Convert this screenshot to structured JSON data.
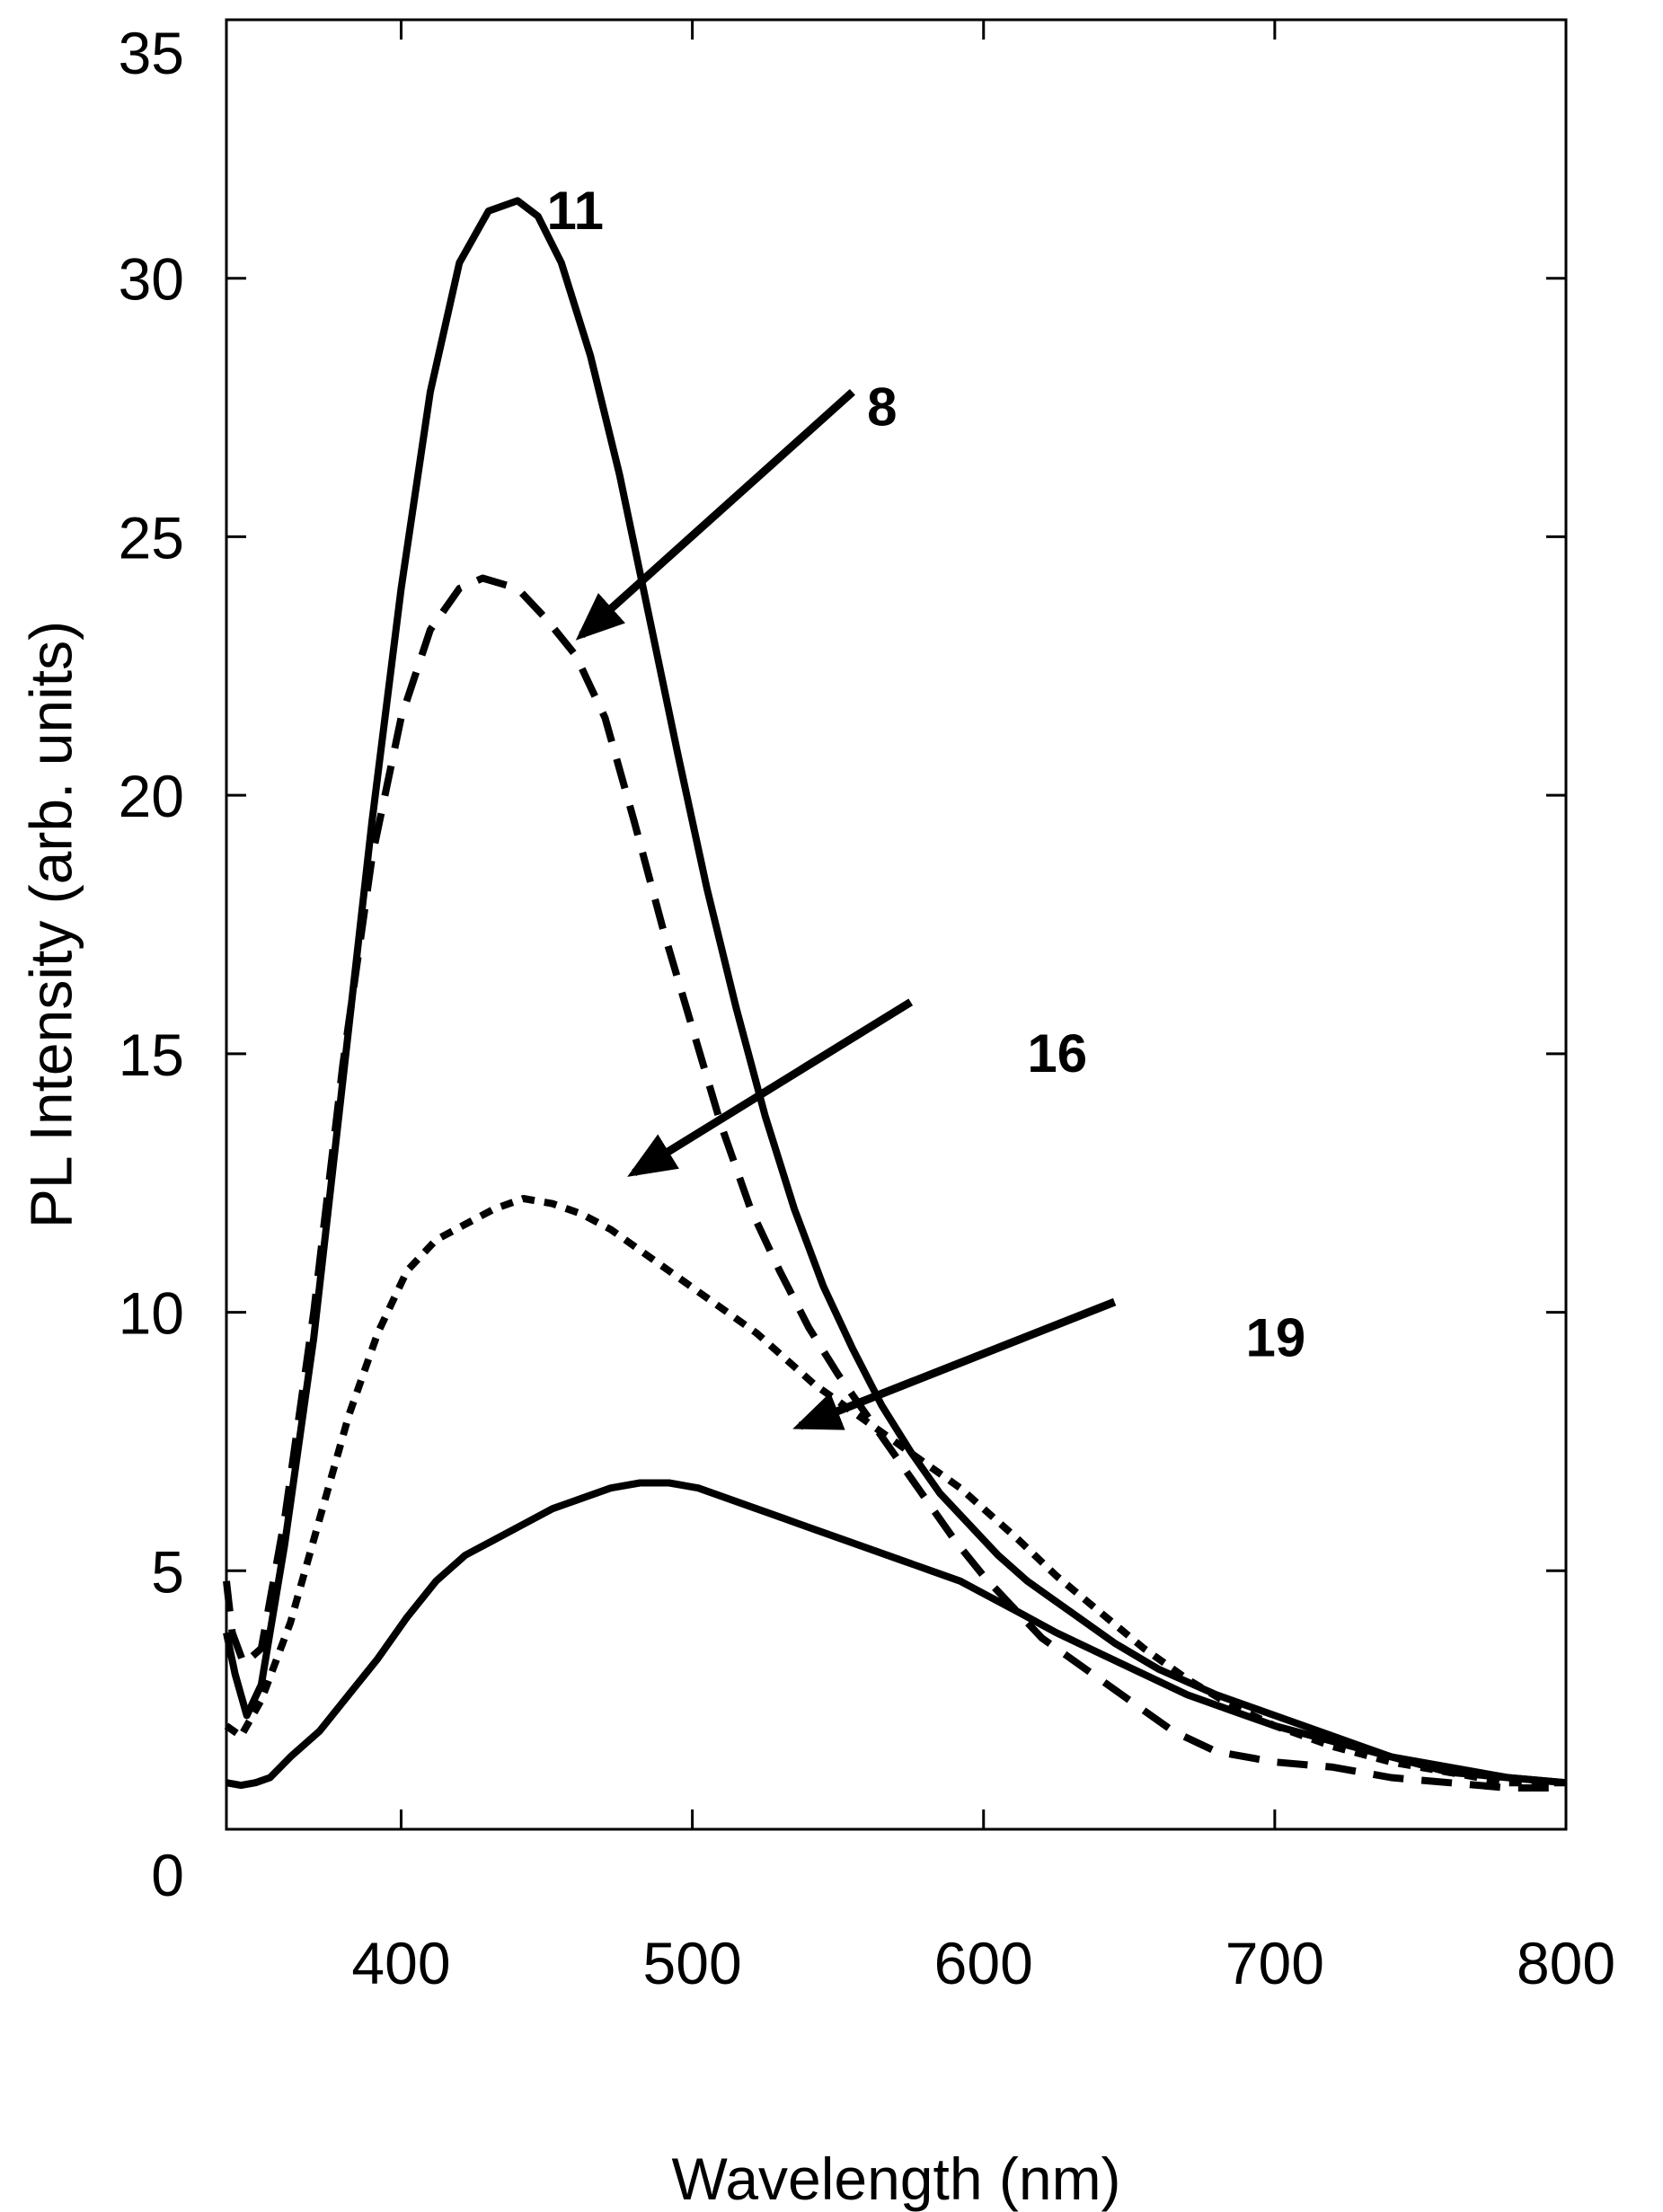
{
  "chart_data": {
    "type": "line",
    "title": "",
    "xlabel": "Wavelength (nm)",
    "ylabel": "PL Intensity (arb. units)",
    "xlim": [
      340,
      800
    ],
    "ylim": [
      0,
      35
    ],
    "xticks": [
      400,
      500,
      600,
      700,
      800
    ],
    "yticks": [
      0,
      5,
      10,
      15,
      20,
      25,
      30,
      35
    ],
    "grid": false,
    "legend": "none",
    "colors": {
      "line": "#000000",
      "background": "#ffffff"
    },
    "series": [
      {
        "label": "11",
        "style": "solid",
        "points": [
          [
            340,
            3.8
          ],
          [
            343,
            3.0
          ],
          [
            347,
            2.2
          ],
          [
            352,
            2.8
          ],
          [
            360,
            5.5
          ],
          [
            370,
            9.5
          ],
          [
            380,
            14.5
          ],
          [
            390,
            19.5
          ],
          [
            400,
            24.0
          ],
          [
            410,
            27.8
          ],
          [
            420,
            30.3
          ],
          [
            430,
            31.3
          ],
          [
            440,
            31.5
          ],
          [
            447,
            31.2
          ],
          [
            455,
            30.3
          ],
          [
            465,
            28.5
          ],
          [
            475,
            26.2
          ],
          [
            485,
            23.5
          ],
          [
            495,
            20.8
          ],
          [
            505,
            18.2
          ],
          [
            515,
            15.9
          ],
          [
            525,
            13.8
          ],
          [
            535,
            12.0
          ],
          [
            545,
            10.5
          ],
          [
            555,
            9.3
          ],
          [
            565,
            8.2
          ],
          [
            575,
            7.3
          ],
          [
            585,
            6.5
          ],
          [
            595,
            5.9
          ],
          [
            605,
            5.3
          ],
          [
            615,
            4.8
          ],
          [
            630,
            4.2
          ],
          [
            645,
            3.6
          ],
          [
            660,
            3.1
          ],
          [
            680,
            2.6
          ],
          [
            700,
            2.2
          ],
          [
            720,
            1.8
          ],
          [
            740,
            1.4
          ],
          [
            760,
            1.1
          ],
          [
            780,
            1.0
          ],
          [
            800,
            0.9
          ]
        ]
      },
      {
        "label": "8",
        "style": "dashed",
        "points": [
          [
            340,
            4.8
          ],
          [
            342,
            3.8
          ],
          [
            346,
            3.2
          ],
          [
            352,
            3.5
          ],
          [
            360,
            6.0
          ],
          [
            370,
            10.0
          ],
          [
            380,
            14.8
          ],
          [
            390,
            18.8
          ],
          [
            400,
            21.5
          ],
          [
            410,
            23.2
          ],
          [
            420,
            24.0
          ],
          [
            428,
            24.2
          ],
          [
            440,
            24.0
          ],
          [
            450,
            23.4
          ],
          [
            460,
            22.7
          ],
          [
            470,
            21.5
          ],
          [
            480,
            19.5
          ],
          [
            490,
            17.4
          ],
          [
            500,
            15.5
          ],
          [
            510,
            13.6
          ],
          [
            520,
            12.0
          ],
          [
            530,
            10.8
          ],
          [
            540,
            9.7
          ],
          [
            550,
            8.8
          ],
          [
            560,
            8.0
          ],
          [
            570,
            7.2
          ],
          [
            580,
            6.4
          ],
          [
            590,
            5.6
          ],
          [
            600,
            4.9
          ],
          [
            610,
            4.3
          ],
          [
            620,
            3.7
          ],
          [
            635,
            3.1
          ],
          [
            650,
            2.5
          ],
          [
            665,
            1.9
          ],
          [
            680,
            1.5
          ],
          [
            700,
            1.3
          ],
          [
            720,
            1.2
          ],
          [
            740,
            1.0
          ],
          [
            760,
            0.9
          ],
          [
            780,
            0.8
          ],
          [
            800,
            0.8
          ]
        ]
      },
      {
        "label": "16",
        "style": "dotted",
        "points": [
          [
            340,
            2.0
          ],
          [
            345,
            1.8
          ],
          [
            352,
            2.5
          ],
          [
            362,
            4.0
          ],
          [
            372,
            6.0
          ],
          [
            382,
            8.0
          ],
          [
            392,
            9.6
          ],
          [
            402,
            10.8
          ],
          [
            412,
            11.4
          ],
          [
            422,
            11.7
          ],
          [
            432,
            12.0
          ],
          [
            442,
            12.2
          ],
          [
            452,
            12.1
          ],
          [
            462,
            11.9
          ],
          [
            472,
            11.6
          ],
          [
            482,
            11.2
          ],
          [
            492,
            10.8
          ],
          [
            502,
            10.4
          ],
          [
            512,
            10.0
          ],
          [
            522,
            9.6
          ],
          [
            532,
            9.1
          ],
          [
            542,
            8.6
          ],
          [
            552,
            8.2
          ],
          [
            562,
            7.8
          ],
          [
            572,
            7.4
          ],
          [
            582,
            7.0
          ],
          [
            592,
            6.6
          ],
          [
            602,
            6.1
          ],
          [
            612,
            5.6
          ],
          [
            625,
            4.9
          ],
          [
            640,
            4.2
          ],
          [
            655,
            3.5
          ],
          [
            670,
            2.9
          ],
          [
            685,
            2.4
          ],
          [
            700,
            2.0
          ],
          [
            720,
            1.6
          ],
          [
            740,
            1.3
          ],
          [
            760,
            1.1
          ],
          [
            780,
            0.9
          ],
          [
            800,
            0.9
          ]
        ]
      },
      {
        "label": "19",
        "style": "solid",
        "points": [
          [
            340,
            0.9
          ],
          [
            345,
            0.85
          ],
          [
            350,
            0.9
          ],
          [
            355,
            1.0
          ],
          [
            362,
            1.4
          ],
          [
            372,
            1.9
          ],
          [
            382,
            2.6
          ],
          [
            392,
            3.3
          ],
          [
            402,
            4.1
          ],
          [
            412,
            4.8
          ],
          [
            422,
            5.3
          ],
          [
            432,
            5.6
          ],
          [
            442,
            5.9
          ],
          [
            452,
            6.2
          ],
          [
            462,
            6.4
          ],
          [
            472,
            6.6
          ],
          [
            482,
            6.7
          ],
          [
            492,
            6.7
          ],
          [
            502,
            6.6
          ],
          [
            512,
            6.4
          ],
          [
            522,
            6.2
          ],
          [
            532,
            6.0
          ],
          [
            542,
            5.8
          ],
          [
            552,
            5.6
          ],
          [
            562,
            5.4
          ],
          [
            572,
            5.2
          ],
          [
            582,
            5.0
          ],
          [
            592,
            4.8
          ],
          [
            602,
            4.5
          ],
          [
            612,
            4.2
          ],
          [
            625,
            3.8
          ],
          [
            640,
            3.4
          ],
          [
            655,
            3.0
          ],
          [
            670,
            2.6
          ],
          [
            685,
            2.3
          ],
          [
            700,
            2.0
          ],
          [
            720,
            1.7
          ],
          [
            740,
            1.4
          ],
          [
            760,
            1.2
          ],
          [
            780,
            1.0
          ],
          [
            800,
            0.9
          ]
        ]
      }
    ],
    "annotations": [
      {
        "text": "11",
        "at": [
          450,
          31.3
        ],
        "arrow": false
      },
      {
        "text": "8",
        "at": [
          560,
          27.5
        ],
        "arrow_from": [
          555,
          27.8
        ],
        "arrow_to": [
          462,
          23.1
        ]
      },
      {
        "text": "16",
        "at": [
          615,
          15.0
        ],
        "arrow_from": [
          575,
          16.0
        ],
        "arrow_to": [
          480,
          12.7
        ]
      },
      {
        "text": "19",
        "at": [
          690,
          9.5
        ],
        "arrow_from": [
          645,
          10.2
        ],
        "arrow_to": [
          537,
          7.8
        ]
      }
    ]
  }
}
